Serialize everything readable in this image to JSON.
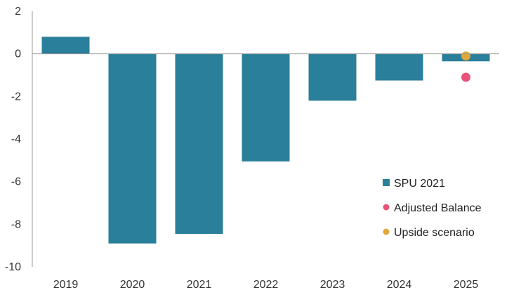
{
  "chart_data": {
    "type": "bar",
    "categories": [
      "2019",
      "2020",
      "2021",
      "2022",
      "2023",
      "2024",
      "2025"
    ],
    "series": [
      {
        "name": "SPU 2021",
        "type": "bar",
        "color": "#2a7f9a",
        "values": [
          0.8,
          -8.9,
          -8.45,
          -5.05,
          -2.2,
          -1.25,
          -0.35
        ]
      },
      {
        "name": "Adjusted Balance",
        "type": "scatter",
        "color": "#e8537a",
        "points": [
          {
            "x": "2025",
            "y": -1.1
          }
        ]
      },
      {
        "name": "Upside scenario",
        "type": "scatter",
        "color": "#e0a83a",
        "points": [
          {
            "x": "2025",
            "y": -0.1
          }
        ]
      }
    ],
    "yticks": [
      "2",
      "0",
      "-2",
      "-4",
      "-6",
      "-8",
      "-10"
    ],
    "ylim": [
      -10,
      2
    ],
    "title": "",
    "xlabel": "",
    "ylabel": "",
    "grid": false,
    "legend": {
      "placement": "bottom-right"
    }
  }
}
